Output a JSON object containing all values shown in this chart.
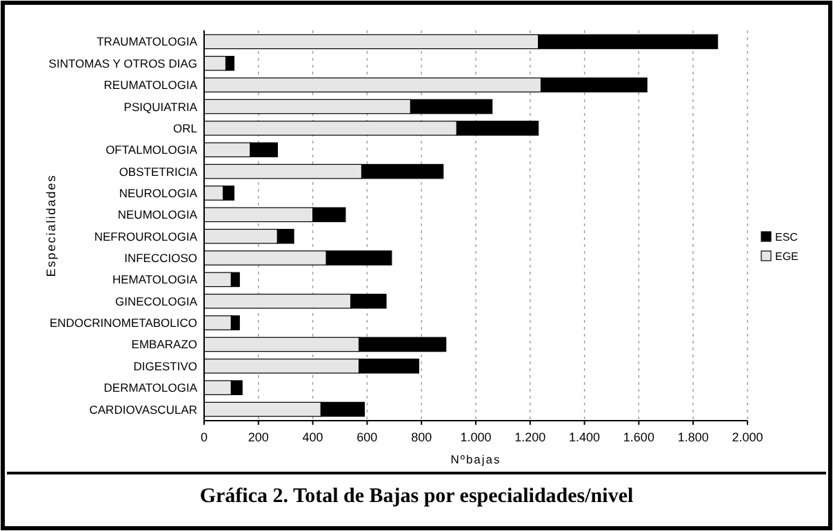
{
  "chart_data": {
    "type": "bar",
    "orientation": "horizontal",
    "stacked": true,
    "title": "Gráfica 2. Total de Bajas por especialidades/nivel",
    "xlabel": "Nºbajas",
    "ylabel": "Especialidades",
    "categories": [
      "TRAUMATOLOGIA",
      "SINTOMAS Y OTROS DIAG",
      "REUMATOLOGIA",
      "PSIQUIATRIA",
      "ORL",
      "OFTALMOLOGIA",
      "OBSTETRICIA",
      "NEUROLOGIA",
      "NEUMOLOGIA",
      "NEFROUROLOGIA",
      "INFECCIOSO",
      "HEMATOLOGIA",
      "GINECOLOGIA",
      "ENDOCRINOMETABOLICO",
      "EMBARAZO",
      "DIGESTIVO",
      "DERMATOLOGIA",
      "CARDIOVASCULAR"
    ],
    "series": [
      {
        "name": "EGE",
        "color": "#e6e6e6",
        "values": [
          1230,
          80,
          1240,
          760,
          930,
          170,
          580,
          70,
          400,
          270,
          450,
          100,
          540,
          100,
          570,
          570,
          100,
          430
        ]
      },
      {
        "name": "ESC",
        "color": "#000000",
        "values": [
          660,
          30,
          390,
          300,
          300,
          100,
          300,
          40,
          120,
          60,
          240,
          30,
          130,
          30,
          320,
          220,
          40,
          160
        ]
      }
    ],
    "xlim": [
      0,
      2000
    ],
    "xticks": [
      0,
      200,
      400,
      600,
      800,
      {
        "value": 1000,
        "label": "1.000"
      },
      {
        "value": 1200,
        "label": "1.200"
      },
      {
        "value": 1400,
        "label": "1.400"
      },
      {
        "value": 1600,
        "label": "1.600"
      },
      {
        "value": 1800,
        "label": "1.800"
      },
      {
        "value": 2000,
        "label": "2.000"
      }
    ],
    "grid": "x",
    "legend": "right"
  }
}
